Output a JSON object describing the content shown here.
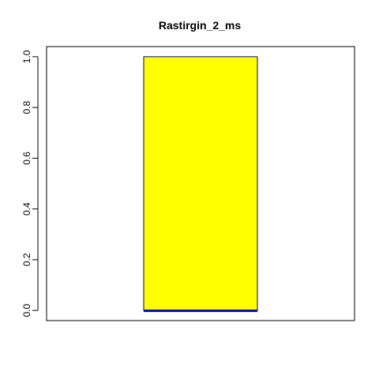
{
  "chart_data": {
    "type": "bar",
    "title": "Rastirgin_2_ms",
    "xlabel": "",
    "ylabel": "",
    "ylim": [
      -0.04,
      1.04
    ],
    "y_ticks": [
      "0.0",
      "0.2",
      "0.4",
      "0.6",
      "0.8",
      "1.0"
    ],
    "y_tick_values": [
      0.0,
      0.2,
      0.4,
      0.6,
      0.8,
      1.0
    ],
    "series": [
      {
        "values": [
          1.0
        ],
        "color": "#ffff00"
      },
      {
        "values": [
          0.0
        ],
        "color": "#0000cd"
      }
    ],
    "bar_border_color": "#000080",
    "grid": false,
    "legend": "none"
  }
}
